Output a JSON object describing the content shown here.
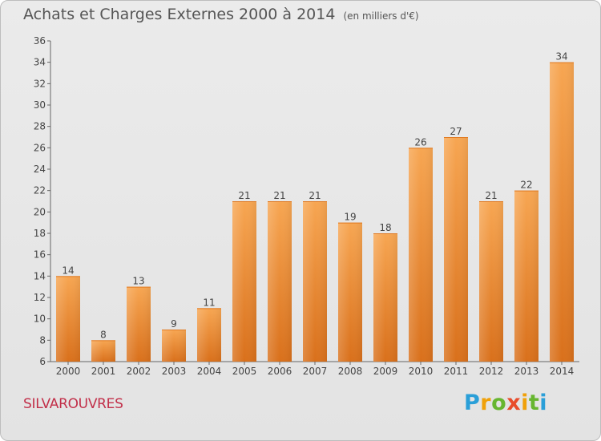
{
  "header": {
    "title": "Achats et Charges Externes 2000 à 2014",
    "subtitle": "(en milliers d'€)"
  },
  "place": "SILVAROUVRES",
  "logo": {
    "text": "Proxiti",
    "colors": [
      "#2a9fd8",
      "#f0a10a",
      "#67b630",
      "#e84c2b"
    ]
  },
  "chart_data": {
    "type": "bar",
    "title": "Achats et Charges Externes 2000 à 2014",
    "subtitle": "(en milliers d'€)",
    "categories": [
      "2000",
      "2001",
      "2002",
      "2003",
      "2004",
      "2005",
      "2006",
      "2007",
      "2008",
      "2009",
      "2010",
      "2011",
      "2012",
      "2013",
      "2014"
    ],
    "values": [
      14,
      8,
      13,
      9,
      11,
      21,
      21,
      21,
      19,
      18,
      26,
      27,
      21,
      22,
      34
    ],
    "ylim": [
      6,
      36
    ],
    "yticks": [
      6,
      8,
      10,
      12,
      14,
      16,
      18,
      20,
      22,
      24,
      26,
      28,
      30,
      32,
      34,
      36
    ],
    "grid": false,
    "bar_color": "#f0953c",
    "xlabel": "",
    "ylabel": ""
  }
}
